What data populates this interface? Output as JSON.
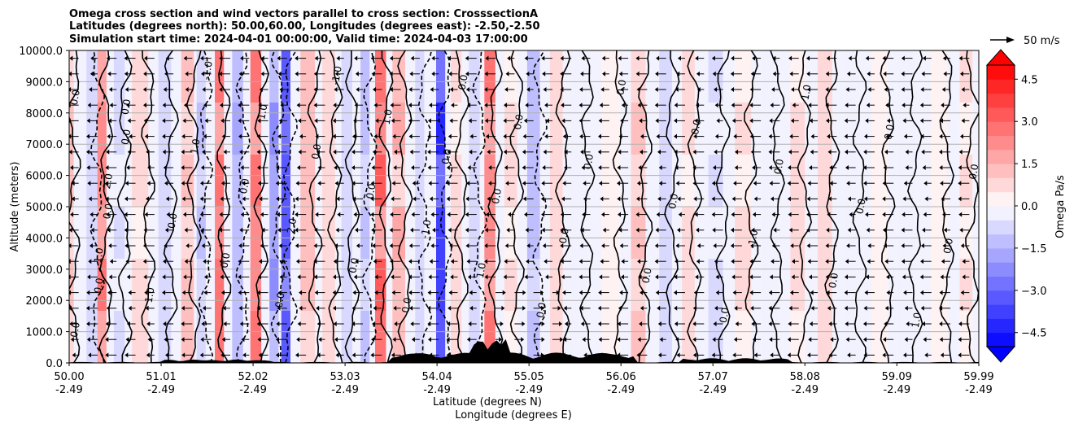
{
  "title_lines": [
    "Omega cross section and wind vectors parallel to cross section: CrosssectionA",
    "Latitudes (degrees north): 50.00,60.00, Longitudes (degrees east): -2.50,-2.50",
    "Simulation start time: 2024-04-01 00:00:00, Valid time: 2024-04-03 17:00:00"
  ],
  "chart_data": {
    "type": "heatmap",
    "ylabel": "Altitude (meters)",
    "xlabel_lat": "Latitude (degrees N)",
    "xlabel_lon": "Longitude (degrees E)",
    "ylim": [
      0,
      10000
    ],
    "xlim": [
      50.0,
      59.99
    ],
    "grid": "horizontal",
    "y_ticks": [
      0,
      1000,
      2000,
      3000,
      4000,
      5000,
      6000,
      7000,
      8000,
      9000,
      10000
    ],
    "y_tick_labels": [
      "0.0",
      "1000.0",
      "2000.0",
      "3000.0",
      "4000.0",
      "5000.0",
      "6000.0",
      "7000.0",
      "8000.0",
      "9000.0",
      "10000.0"
    ],
    "x_ticks": [
      50.0,
      51.01,
      52.02,
      53.03,
      54.04,
      55.05,
      56.06,
      57.07,
      58.08,
      59.09,
      59.99
    ],
    "x_tick_labels_lat": [
      "50.00",
      "51.01",
      "52.02",
      "53.03",
      "54.04",
      "55.05",
      "56.06",
      "57.07",
      "58.08",
      "59.09",
      "59.99"
    ],
    "x_tick_labels_lon": [
      "-2.49",
      "-2.49",
      "-2.49",
      "-2.49",
      "-2.49",
      "-2.49",
      "-2.49",
      "-2.49",
      "-2.49",
      "-2.49",
      "-2.49"
    ],
    "colorbar": {
      "label": "Omega Pa/s",
      "vmin": -5.0,
      "vmax": 5.0,
      "levels": 20,
      "ticks": [
        -4.5,
        -3.0,
        -1.5,
        0.0,
        1.5,
        3.0,
        4.5
      ],
      "tick_labels": [
        "−4.5",
        "−3.0",
        "−1.5",
        "0.0",
        "1.5",
        "3.0",
        "4.5"
      ],
      "colormap": "bwr",
      "extend": "both"
    },
    "vector_key": {
      "label": "50 m/s",
      "value": 50
    },
    "contour_levels": [
      -1.0,
      0.0,
      1.0
    ],
    "contour_labels": [
      "0.0",
      "1.0",
      "2.0",
      "0.0",
      "1.0",
      "0.0",
      "1.0",
      "-1.0",
      "0.0",
      "0.0",
      "1.0",
      "0.0",
      "2.0",
      "0.0",
      "-1.0",
      "0.0",
      "0.0",
      "1.0",
      "0.0",
      "-1.0",
      "0.0",
      "0.0",
      "1.0",
      "0.0",
      "0.0",
      "0.0",
      "0.0",
      "0.0",
      "0.0",
      "0.0",
      "0.0",
      "0.0",
      "0.0",
      "-1.0",
      "0.0",
      "1.0",
      "0.0",
      "0.0",
      "0.0",
      "1.0",
      "0.0",
      "0.0",
      "0.0",
      "0.0",
      "0.0",
      "0.0"
    ],
    "omega_bands": [
      {
        "lat": 50.0,
        "w": 0.1,
        "v": 1.2
      },
      {
        "lat": 50.25,
        "w": 0.12,
        "v": -1.0
      },
      {
        "lat": 50.36,
        "w": 0.1,
        "v": 2.6
      },
      {
        "lat": 50.55,
        "w": 0.12,
        "v": -0.6
      },
      {
        "lat": 50.78,
        "w": 0.18,
        "v": 0.8
      },
      {
        "lat": 51.05,
        "w": 0.14,
        "v": -0.9
      },
      {
        "lat": 51.3,
        "w": 0.14,
        "v": 1.2
      },
      {
        "lat": 51.45,
        "w": 0.1,
        "v": -1.2
      },
      {
        "lat": 51.65,
        "w": 0.1,
        "v": 3.0
      },
      {
        "lat": 51.85,
        "w": 0.12,
        "v": -1.6
      },
      {
        "lat": 52.05,
        "w": 0.12,
        "v": 2.8
      },
      {
        "lat": 52.25,
        "w": 0.1,
        "v": -2.2
      },
      {
        "lat": 52.38,
        "w": 0.1,
        "v": -3.4
      },
      {
        "lat": 52.62,
        "w": 0.16,
        "v": 1.5
      },
      {
        "lat": 52.85,
        "w": 0.14,
        "v": 0.9
      },
      {
        "lat": 53.05,
        "w": 0.12,
        "v": -0.8
      },
      {
        "lat": 53.25,
        "w": 0.1,
        "v": -1.2
      },
      {
        "lat": 53.42,
        "w": 0.12,
        "v": 3.2
      },
      {
        "lat": 53.62,
        "w": 0.14,
        "v": 1.6
      },
      {
        "lat": 53.85,
        "w": 0.1,
        "v": -1.0
      },
      {
        "lat": 54.08,
        "w": 0.1,
        "v": -4.2
      },
      {
        "lat": 54.25,
        "w": 0.12,
        "v": 0.8
      },
      {
        "lat": 54.45,
        "w": 0.12,
        "v": -1.0
      },
      {
        "lat": 54.62,
        "w": 0.12,
        "v": 2.6
      },
      {
        "lat": 54.85,
        "w": 0.14,
        "v": 0.6
      },
      {
        "lat": 55.1,
        "w": 0.14,
        "v": -1.4
      },
      {
        "lat": 55.35,
        "w": 0.14,
        "v": 0.9
      },
      {
        "lat": 55.6,
        "w": 0.18,
        "v": -0.3
      },
      {
        "lat": 55.95,
        "w": 0.2,
        "v": 0.4
      },
      {
        "lat": 56.25,
        "w": 0.16,
        "v": 1.1
      },
      {
        "lat": 56.55,
        "w": 0.14,
        "v": -0.8
      },
      {
        "lat": 56.8,
        "w": 0.14,
        "v": 0.7
      },
      {
        "lat": 57.1,
        "w": 0.16,
        "v": -0.6
      },
      {
        "lat": 57.4,
        "w": 0.18,
        "v": 0.6
      },
      {
        "lat": 57.7,
        "w": 0.16,
        "v": -0.5
      },
      {
        "lat": 58.0,
        "w": 0.16,
        "v": 0.7
      },
      {
        "lat": 58.3,
        "w": 0.16,
        "v": 0.8
      },
      {
        "lat": 58.6,
        "w": 0.16,
        "v": -0.5
      },
      {
        "lat": 58.9,
        "w": 0.18,
        "v": 0.4
      },
      {
        "lat": 59.2,
        "w": 0.18,
        "v": -0.4
      },
      {
        "lat": 59.55,
        "w": 0.18,
        "v": 0.3
      },
      {
        "lat": 59.85,
        "w": 0.14,
        "v": 0.6
      }
    ]
  }
}
